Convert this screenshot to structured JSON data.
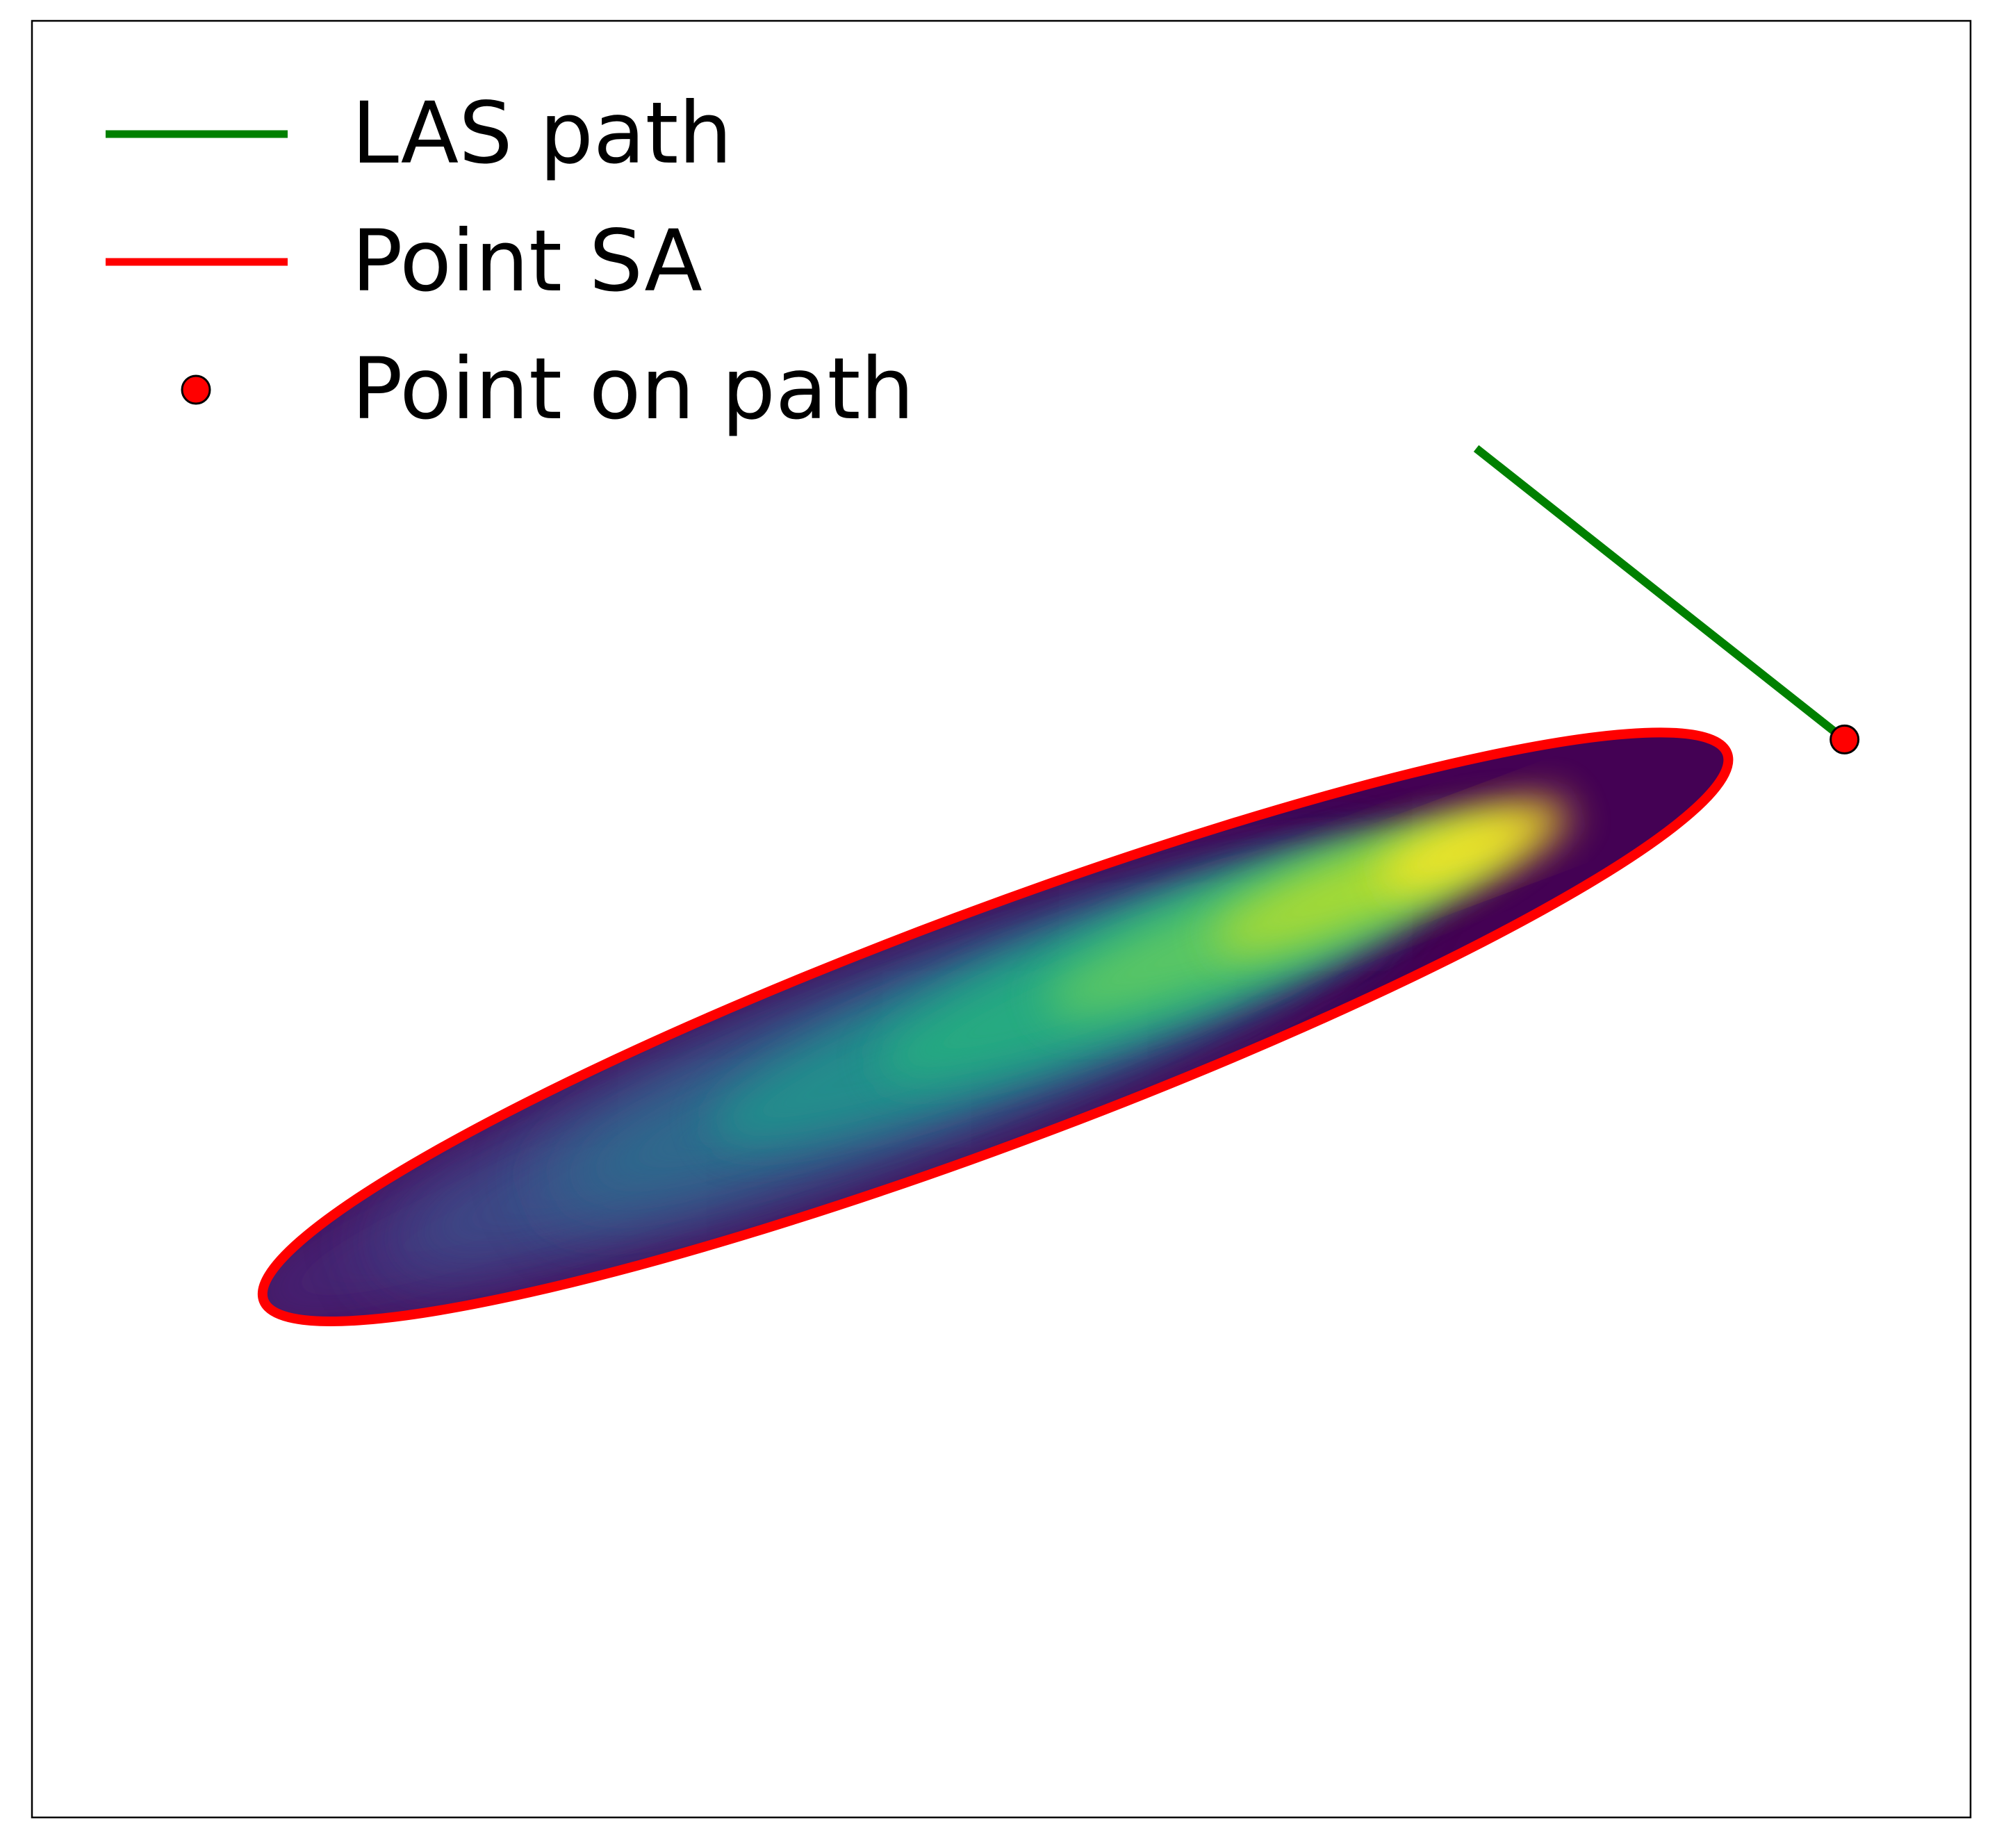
{
  "chart_data": {
    "type": "line",
    "title": "",
    "xlabel": "",
    "ylabel": "",
    "axes_visible": false,
    "grid": false,
    "legend_placement": "top-left",
    "xlim": [
      0,
      10
    ],
    "ylim": [
      0,
      10
    ],
    "legend": [
      {
        "label": "LAS path",
        "kind": "line",
        "color": "#008000"
      },
      {
        "label": "Point SA",
        "kind": "line",
        "color": "#ff0000"
      },
      {
        "label": "Point on path",
        "kind": "marker",
        "color": "#ff0000"
      }
    ],
    "series": [
      {
        "name": "LAS path",
        "kind": "line",
        "color": "#008000",
        "x": [
          7.45,
          9.35
        ],
        "y": [
          7.62,
          6.0
        ]
      },
      {
        "name": "Point on path",
        "kind": "marker",
        "color": "#ff0000",
        "x": [
          9.35
        ],
        "y": [
          6.0
        ]
      },
      {
        "name": "Point SA",
        "kind": "ellipse-contour",
        "color": "#ff0000",
        "center": [
          4.97,
          4.4
        ],
        "semi_major": 4.03,
        "semi_minor": 0.6,
        "angle_deg": 20.5
      }
    ],
    "density": {
      "kind": "filled-heatmap",
      "colormap": "viridis",
      "colormap_stops": [
        "#440154",
        "#472d7b",
        "#3b528b",
        "#2c728e",
        "#21918c",
        "#28ae80",
        "#5ec962",
        "#addc30",
        "#fde725"
      ],
      "peak": [
        7.44,
        5.41
      ]
    }
  }
}
